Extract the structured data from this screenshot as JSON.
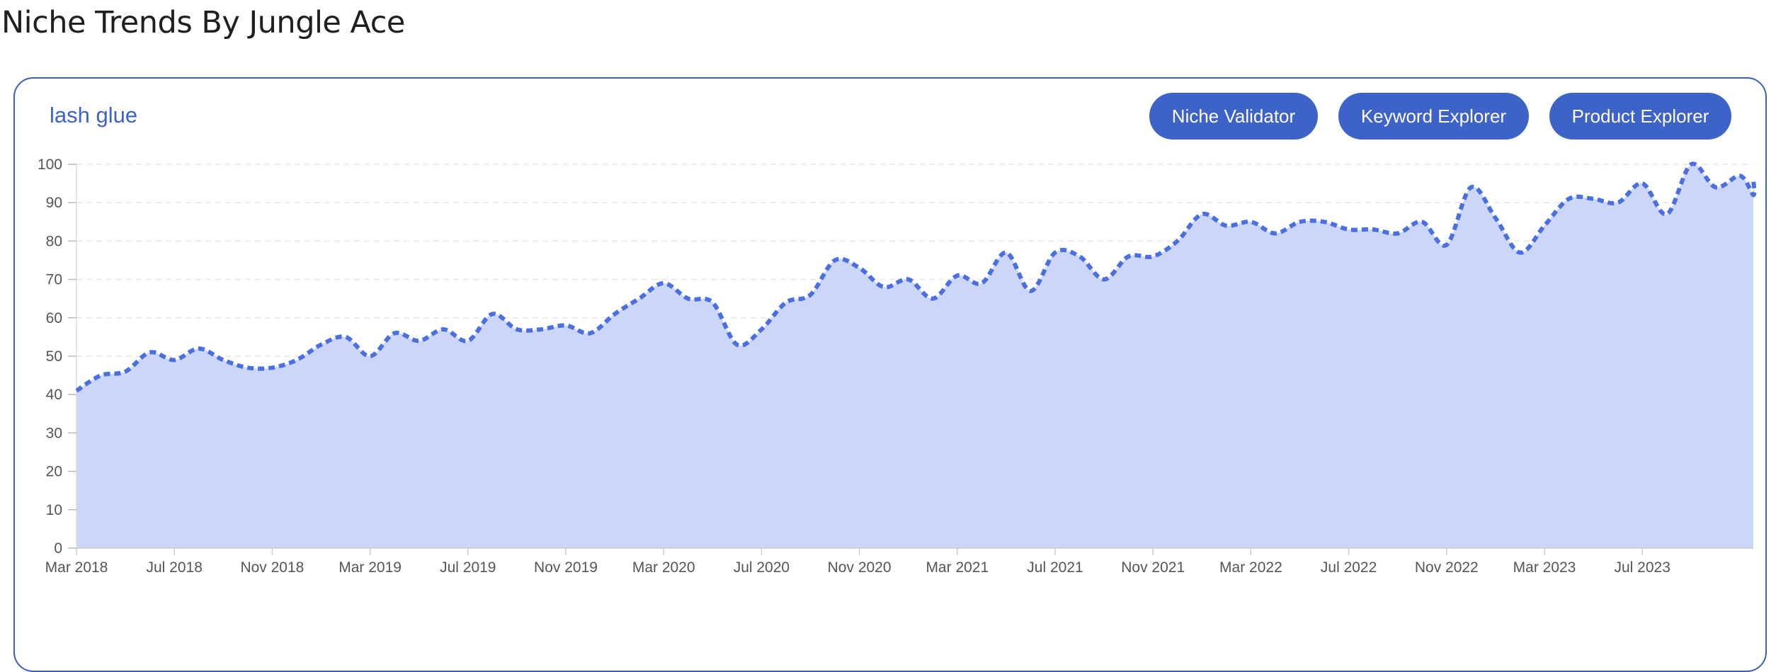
{
  "page": {
    "title": "Niche Trends By Jungle Ace"
  },
  "card": {
    "keyword": "lash glue",
    "buttons": {
      "niche_validator": "Niche Validator",
      "keyword_explorer": "Keyword Explorer",
      "product_explorer": "Product Explorer"
    }
  },
  "colors": {
    "accent": "#3d63c9",
    "line": "#4a6fe0",
    "fill": "#cbd6f9",
    "grid": "#e6e6e6"
  },
  "chart_data": {
    "type": "area",
    "x_start": "Mar 2018",
    "x_end": "Feb 2024",
    "xticks": [
      "Mar 2018",
      "Jul 2018",
      "Nov 2018",
      "Mar 2019",
      "Jul 2019",
      "Nov 2019",
      "Mar 2020",
      "Jul 2020",
      "Nov 2020",
      "Mar 2021",
      "Jul 2021",
      "Nov 2021",
      "Mar 2022",
      "Jul 2022",
      "Nov 2022",
      "Mar 2023",
      "Jul 2023"
    ],
    "yticks": [
      0,
      10,
      20,
      30,
      40,
      50,
      60,
      70,
      80,
      90,
      100
    ],
    "ylim": [
      0,
      100
    ],
    "grid": true,
    "line_style": "dotted",
    "series": [
      {
        "values": [
          41,
          45,
          46,
          51,
          49,
          52,
          49,
          47,
          47,
          49,
          53,
          55,
          50,
          56,
          54,
          57,
          54,
          61,
          57,
          57,
          58,
          56,
          61,
          65,
          69,
          65,
          64,
          53,
          57,
          64,
          66,
          75,
          73,
          68,
          70,
          65,
          71,
          69,
          77,
          67,
          77,
          76,
          70,
          76,
          76,
          80,
          87,
          84,
          85,
          82,
          85,
          85,
          83,
          83,
          82,
          85,
          79,
          94,
          86,
          77,
          84,
          91,
          91,
          90,
          95,
          87,
          100,
          94,
          97,
          92,
          96
        ]
      }
    ]
  }
}
